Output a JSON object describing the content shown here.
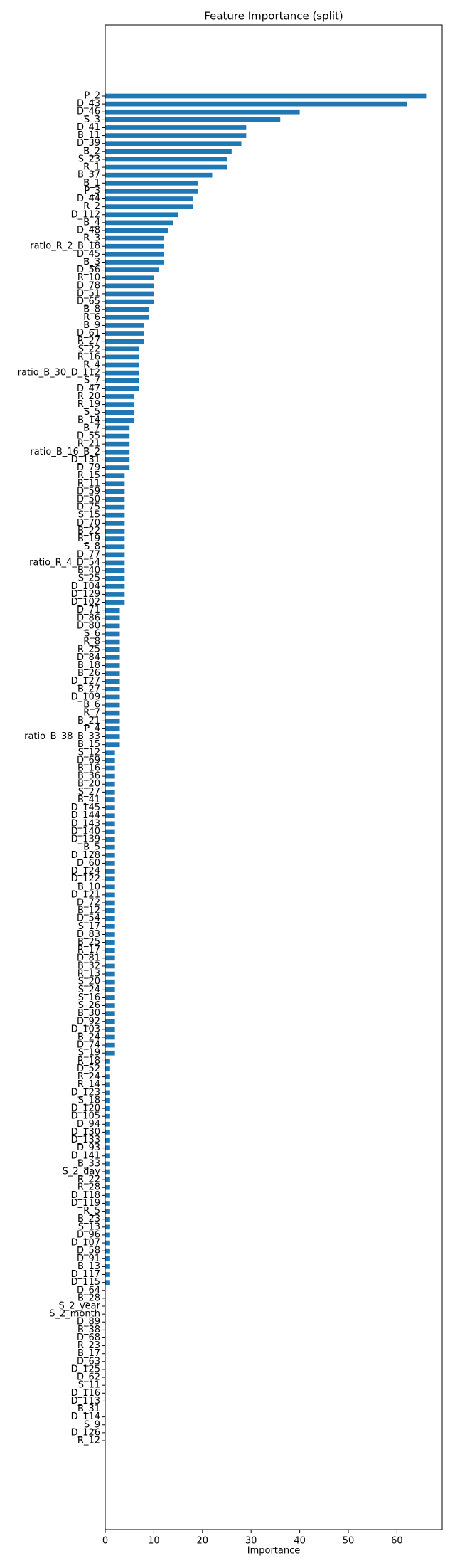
{
  "chart_data": {
    "type": "barh",
    "title": "Feature Importance (split)",
    "x_label": "Importance",
    "color": "#1f77b4",
    "categories": [
      "P_2",
      "D_43",
      "D_46",
      "S_3",
      "D_41",
      "B_11",
      "D_39",
      "B_2",
      "S_23",
      "R_1",
      "B_37",
      "B_1",
      "P_3",
      "D_44",
      "R_2",
      "D_112",
      "B_4",
      "D_48",
      "R_3",
      "ratio_R_2_B_18",
      "D_45",
      "B_3",
      "D_56",
      "R_10",
      "D_78",
      "D_51",
      "D_65",
      "B_8",
      "R_6",
      "B_9",
      "D_61",
      "R_27",
      "S_22",
      "R_16",
      "R_4",
      "ratio_B_30_D_112",
      "S_7",
      "D_47",
      "R_20",
      "R_19",
      "S_5",
      "B_14",
      "B_7",
      "D_55",
      "R_21",
      "ratio_B_16_B_2",
      "D_131",
      "D_79",
      "R_15",
      "R_11",
      "D_59",
      "D_50",
      "D_75",
      "S_15",
      "D_70",
      "B_22",
      "B_19",
      "S_8",
      "D_77",
      "ratio_R_4_D_54",
      "B_40",
      "S_25",
      "D_104",
      "D_129",
      "D_102",
      "D_71",
      "D_86",
      "D_80",
      "S_6",
      "R_8",
      "R_25",
      "D_84",
      "B_18",
      "B_26",
      "D_127",
      "B_27",
      "D_109",
      "B_6",
      "R_7",
      "B_21",
      "P_4",
      "ratio_B_38_B_33",
      "B_15",
      "S_12",
      "D_69",
      "B_16",
      "B_36",
      "B_20",
      "S_27",
      "B_41",
      "D_145",
      "D_144",
      "D_143",
      "D_140",
      "D_139",
      "B_5",
      "D_128",
      "D_60",
      "D_124",
      "D_122",
      "B_10",
      "D_121",
      "D_72",
      "B_12",
      "D_54",
      "S_17",
      "D_83",
      "B_25",
      "R_17",
      "D_81",
      "B_32",
      "R_13",
      "S_20",
      "S_24",
      "S_16",
      "S_26",
      "B_30",
      "D_92",
      "D_103",
      "B_24",
      "D_74",
      "S_19",
      "R_18",
      "D_52",
      "R_24",
      "R_14",
      "D_123",
      "S_18",
      "D_120",
      "D_105",
      "D_94",
      "D_130",
      "D_133",
      "D_93",
      "D_141",
      "B_33",
      "S_2_day",
      "R_22",
      "R_28",
      "D_118",
      "D_119",
      "R_5",
      "B_23",
      "S_13",
      "D_96",
      "D_107",
      "D_58",
      "D_91",
      "B_13",
      "D_117",
      "D_115",
      "D_64",
      "B_28",
      "S_2_year",
      "S_2_month",
      "D_89",
      "B_38",
      "D_68",
      "R_23",
      "B_17",
      "D_63",
      "D_125",
      "D_62",
      "S_11",
      "D_116",
      "D_113",
      "B_31",
      "D_114",
      "S_9",
      "D_126",
      "R_12"
    ],
    "values": [
      66,
      62,
      40,
      36,
      29,
      29,
      28,
      26,
      25,
      25,
      22,
      19,
      19,
      18,
      18,
      15,
      14,
      13,
      12,
      12,
      12,
      12,
      11,
      10,
      10,
      10,
      10,
      9,
      9,
      8,
      8,
      8,
      7,
      7,
      7,
      7,
      7,
      7,
      6,
      6,
      6,
      6,
      5,
      5,
      5,
      5,
      5,
      5,
      4,
      4,
      4,
      4,
      4,
      4,
      4,
      4,
      4,
      4,
      4,
      4,
      4,
      4,
      4,
      4,
      4,
      3,
      3,
      3,
      3,
      3,
      3,
      3,
      3,
      3,
      3,
      3,
      3,
      3,
      3,
      3,
      3,
      3,
      3,
      2,
      2,
      2,
      2,
      2,
      2,
      2,
      2,
      2,
      2,
      2,
      2,
      2,
      2,
      2,
      2,
      2,
      2,
      2,
      2,
      2,
      2,
      2,
      2,
      2,
      2,
      2,
      2,
      2,
      2,
      2,
      2,
      2,
      2,
      2,
      2,
      2,
      2,
      2,
      1,
      1,
      1,
      1,
      1,
      1,
      1,
      1,
      1,
      1,
      1,
      1,
      1,
      1,
      1,
      1,
      1,
      1,
      1,
      1,
      1,
      1,
      1,
      1,
      1,
      1,
      1,
      1,
      1,
      0,
      0,
      0,
      0,
      0,
      0,
      0,
      0,
      0,
      0,
      0,
      0,
      0,
      0,
      0,
      0,
      0,
      0,
      0,
      0
    ],
    "xlim": [
      0,
      69.3
    ],
    "xticks": [
      0,
      10,
      20,
      30,
      40,
      50,
      60
    ]
  }
}
